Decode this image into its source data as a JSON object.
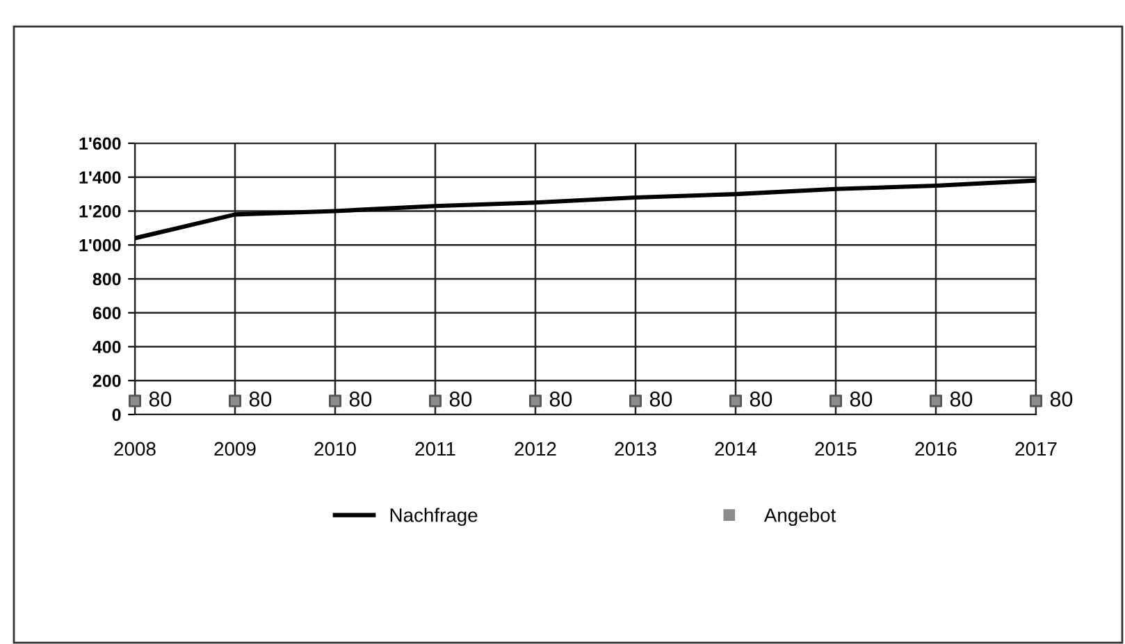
{
  "chart_data": {
    "type": "line",
    "categories": [
      "2008",
      "2009",
      "2010",
      "2011",
      "2012",
      "2013",
      "2014",
      "2015",
      "2016",
      "2017"
    ],
    "series": [
      {
        "name": "Nachfrage",
        "color": "#000000",
        "values": [
          1040,
          1180,
          1200,
          1230,
          1250,
          1280,
          1300,
          1330,
          1350,
          1380
        ]
      },
      {
        "name": "Angebot",
        "type": "scatter",
        "color": "#8c8c8c",
        "marker": "square",
        "values": [
          80,
          80,
          80,
          80,
          80,
          80,
          80,
          80,
          80,
          80
        ],
        "value_labels": [
          "80",
          "80",
          "80",
          "80",
          "80",
          "80",
          "80",
          "80",
          "80",
          "80"
        ]
      }
    ],
    "ylim": [
      0,
      1600
    ],
    "yticks": [
      0,
      200,
      400,
      600,
      800,
      {
        "value": 1000,
        "label": "1'000"
      },
      {
        "value": 1200,
        "label": "1'200"
      },
      {
        "value": 1400,
        "label": "1'400"
      },
      {
        "value": 1600,
        "label": "1'600"
      }
    ],
    "grid": true,
    "legend": "bottom"
  }
}
